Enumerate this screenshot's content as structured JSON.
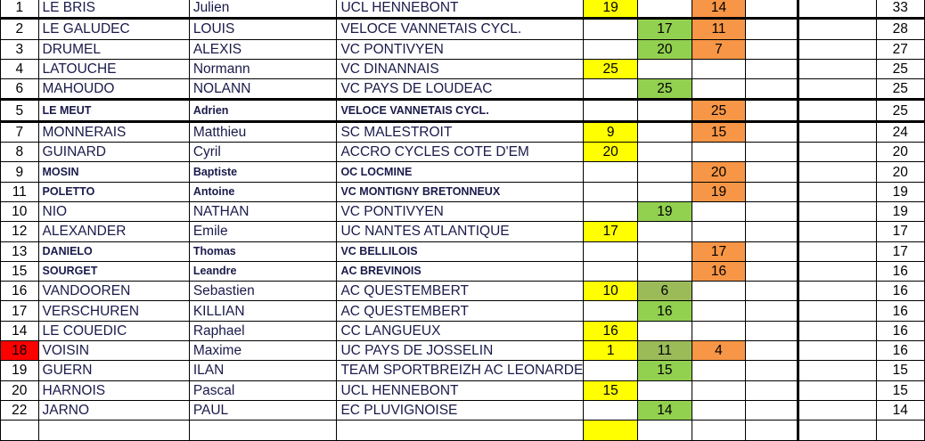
{
  "rows": [
    {
      "pos": "1",
      "nom": "LE BRIS",
      "prenom": "Julien",
      "club": "UCL HENNEBONT",
      "p1": "19",
      "p2": "",
      "p3": "14",
      "total": "33"
    },
    {
      "pos": "2",
      "nom": "LE GALUDEC",
      "prenom": "LOUIS",
      "club": "VELOCE VANNETAIS CYCL.",
      "p1": "",
      "p2": "17",
      "p3": "11",
      "total": "28"
    },
    {
      "pos": "3",
      "nom": "DRUMEL",
      "prenom": "ALEXIS",
      "club": "VC PONTIVYEN",
      "p1": "",
      "p2": "20",
      "p3": "7",
      "total": "27"
    },
    {
      "pos": "4",
      "nom": "LATOUCHE",
      "prenom": "Normann",
      "club": "VC DINANNAIS",
      "p1": "25",
      "p2": "",
      "p3": "",
      "total": "25"
    },
    {
      "pos": "6",
      "nom": "MAHOUDO",
      "prenom": "NOLANN",
      "club": "VC PAYS DE LOUDEAC",
      "p1": "",
      "p2": "25",
      "p3": "",
      "total": "25"
    },
    {
      "pos": "5",
      "nom": "LE MEUT",
      "prenom": "Adrien",
      "club": "VELOCE VANNETAIS CYCL.",
      "p1": "",
      "p2": "",
      "p3": "25",
      "total": "25"
    },
    {
      "pos": "7",
      "nom": "MONNERAIS",
      "prenom": "Matthieu",
      "club": "SC MALESTROIT",
      "p1": "9",
      "p2": "",
      "p3": "15",
      "total": "24"
    },
    {
      "pos": "8",
      "nom": "GUINARD",
      "prenom": "Cyril",
      "club": "ACCRO CYCLES COTE D'EM",
      "p1": "20",
      "p2": "",
      "p3": "",
      "total": "20"
    },
    {
      "pos": "9",
      "nom": "MOSIN",
      "prenom": "Baptiste",
      "club": "OC LOCMINE",
      "p1": "",
      "p2": "",
      "p3": "20",
      "total": "20"
    },
    {
      "pos": "11",
      "nom": "POLETTO",
      "prenom": "Antoine",
      "club": "VC MONTIGNY BRETONNEUX",
      "p1": "",
      "p2": "",
      "p3": "19",
      "total": "19"
    },
    {
      "pos": "10",
      "nom": "NIO",
      "prenom": "NATHAN",
      "club": "VC PONTIVYEN",
      "p1": "",
      "p2": "19",
      "p3": "",
      "total": "19"
    },
    {
      "pos": "12",
      "nom": "ALEXANDER",
      "prenom": "Emile",
      "club": "UC NANTES ATLANTIQUE",
      "p1": "17",
      "p2": "",
      "p3": "",
      "total": "17"
    },
    {
      "pos": "13",
      "nom": "DANIELO",
      "prenom": "Thomas",
      "club": "VC BELLILOIS",
      "p1": "",
      "p2": "",
      "p3": "17",
      "total": "17"
    },
    {
      "pos": "15",
      "nom": "SOURGET",
      "prenom": "Leandre",
      "club": "AC BREVINOIS",
      "p1": "",
      "p2": "",
      "p3": "16",
      "total": "16"
    },
    {
      "pos": "16",
      "nom": "VANDOOREN",
      "prenom": "Sebastien",
      "club": "AC QUESTEMBERT",
      "p1": "10",
      "p2": "6",
      "p3": "",
      "total": "16"
    },
    {
      "pos": "17",
      "nom": "VERSCHUREN",
      "prenom": "KILLIAN",
      "club": "AC QUESTEMBERT",
      "p1": "",
      "p2": "16",
      "p3": "",
      "total": "16"
    },
    {
      "pos": "14",
      "nom": "LE COUEDIC",
      "prenom": "Raphael",
      "club": "CC LANGUEUX",
      "p1": "16",
      "p2": "",
      "p3": "",
      "total": "16"
    },
    {
      "pos": "18",
      "nom": "VOISIN",
      "prenom": "Maxime",
      "club": "UC PAYS DE JOSSELIN",
      "p1": "1",
      "p2": "11",
      "p3": "4",
      "total": "16"
    },
    {
      "pos": "19",
      "nom": "GUERN",
      "prenom": "ILAN",
      "club": "TEAM SPORTBREIZH AC LEONARDE",
      "p1": "",
      "p2": "15",
      "p3": "",
      "total": "15"
    },
    {
      "pos": "20",
      "nom": "HARNOIS",
      "prenom": "Pascal",
      "club": "UCL HENNEBONT",
      "p1": "15",
      "p2": "",
      "p3": "",
      "total": "15"
    },
    {
      "pos": "22",
      "nom": "JARNO",
      "prenom": "PAUL",
      "club": "EC PLUVIGNOISE",
      "p1": "",
      "p2": "14",
      "p3": "",
      "total": "14"
    }
  ],
  "colors": {
    "p1": "#ffff00",
    "p2": "#92d050",
    "p3": "#f79646",
    "highlight": "#ff0000"
  }
}
